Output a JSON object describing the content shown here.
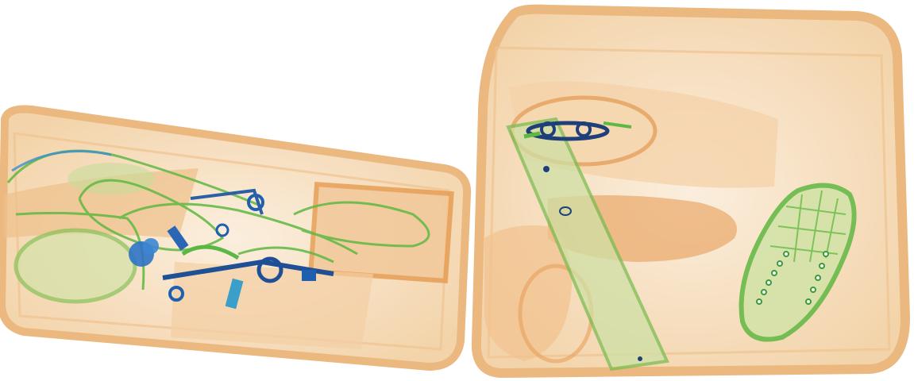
{
  "scene": {
    "kind": "x-ray baggage scan",
    "background": "#ffffff",
    "colors": {
      "organic": "#e8a35a",
      "organic_light": "#f6dcb8",
      "mixed": "#6fbf4a",
      "metal": "#1f5fb0",
      "metal_dark": "#123f7a"
    },
    "objects": [
      {
        "name": "bag-left",
        "material": "organic"
      },
      {
        "name": "bag-right",
        "material": "organic"
      },
      {
        "name": "cables",
        "material": "mixed"
      },
      {
        "name": "metal-items",
        "material": "metal"
      },
      {
        "name": "shoe",
        "material": "mixed"
      },
      {
        "name": "strap",
        "material": "mixed"
      },
      {
        "name": "clothing",
        "material": "organic"
      }
    ]
  }
}
